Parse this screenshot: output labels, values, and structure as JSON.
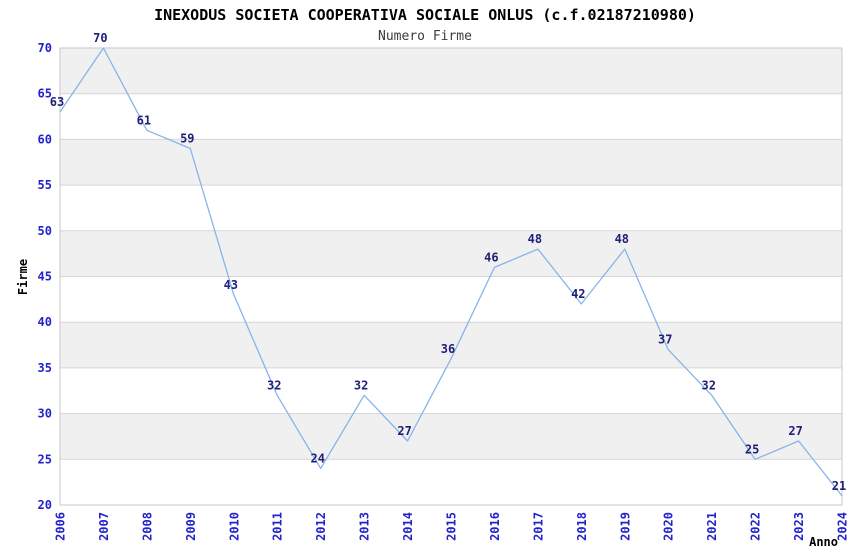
{
  "chart_data": {
    "type": "line",
    "title": "INEXODUS SOCIETA COOPERATIVA SOCIALE ONLUS (c.f.02187210980)",
    "subtitle": "Numero Firme",
    "xlabel": "Anno",
    "ylabel": "Firme",
    "x": [
      "2006",
      "2007",
      "2008",
      "2009",
      "2010",
      "2011",
      "2012",
      "2013",
      "2014",
      "2015",
      "2016",
      "2017",
      "2018",
      "2019",
      "2020",
      "2021",
      "2022",
      "2023",
      "2024"
    ],
    "values": [
      63,
      70,
      61,
      59,
      43,
      32,
      24,
      32,
      27,
      36,
      46,
      48,
      42,
      48,
      37,
      32,
      25,
      27,
      21
    ],
    "ylim": [
      20,
      70
    ],
    "ytick_step": 5,
    "yticks": [
      20,
      25,
      30,
      35,
      40,
      45,
      50,
      55,
      60,
      65,
      70
    ],
    "grid": "horizontal-bands-alternating",
    "legend": "none",
    "data_labels_visible": true,
    "colors": {
      "line": "#87b4e9",
      "tick_label": "#2323cb",
      "data_label": "#20207a",
      "band": "#f0f0f0",
      "gridline": "#d6d6d6",
      "border": "#c9c9c9",
      "title": "#000000",
      "subtitle": "#3c3c3c",
      "axis_title": "#000000",
      "background": "#ffffff"
    }
  }
}
